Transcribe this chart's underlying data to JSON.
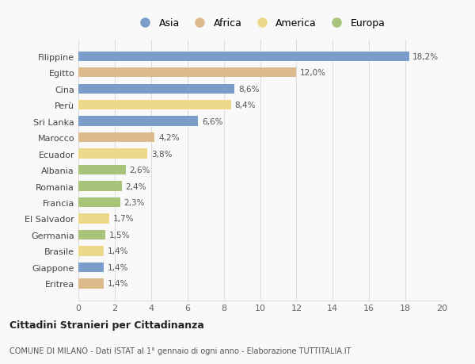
{
  "categories": [
    "Filippine",
    "Egitto",
    "Cina",
    "Perù",
    "Sri Lanka",
    "Marocco",
    "Ecuador",
    "Albania",
    "Romania",
    "Francia",
    "El Salvador",
    "Germania",
    "Brasile",
    "Giappone",
    "Eritrea"
  ],
  "values": [
    18.2,
    12.0,
    8.6,
    8.4,
    6.6,
    4.2,
    3.8,
    2.6,
    2.4,
    2.3,
    1.7,
    1.5,
    1.4,
    1.4,
    1.4
  ],
  "labels": [
    "18,2%",
    "12,0%",
    "8,6%",
    "8,4%",
    "6,6%",
    "4,2%",
    "3,8%",
    "2,6%",
    "2,4%",
    "2,3%",
    "1,7%",
    "1,5%",
    "1,4%",
    "1,4%",
    "1,4%"
  ],
  "continent": [
    "Asia",
    "Africa",
    "Asia",
    "America",
    "Asia",
    "Africa",
    "America",
    "Europa",
    "Europa",
    "Europa",
    "America",
    "Europa",
    "America",
    "Asia",
    "Africa"
  ],
  "colors": {
    "Asia": "#7b9dc9",
    "Africa": "#ddb98c",
    "America": "#edd98a",
    "Europa": "#a8c47a"
  },
  "legend_order": [
    "Asia",
    "Africa",
    "America",
    "Europa"
  ],
  "xlim": [
    0,
    20
  ],
  "xticks": [
    0,
    2,
    4,
    6,
    8,
    10,
    12,
    14,
    16,
    18,
    20
  ],
  "title1": "Cittadini Stranieri per Cittadinanza",
  "title2": "COMUNE DI MILANO - Dati ISTAT al 1° gennaio di ogni anno - Elaborazione TUTTITALIA.IT",
  "bg_color": "#f9f9f9",
  "grid_color": "#dddddd",
  "bar_height": 0.6
}
